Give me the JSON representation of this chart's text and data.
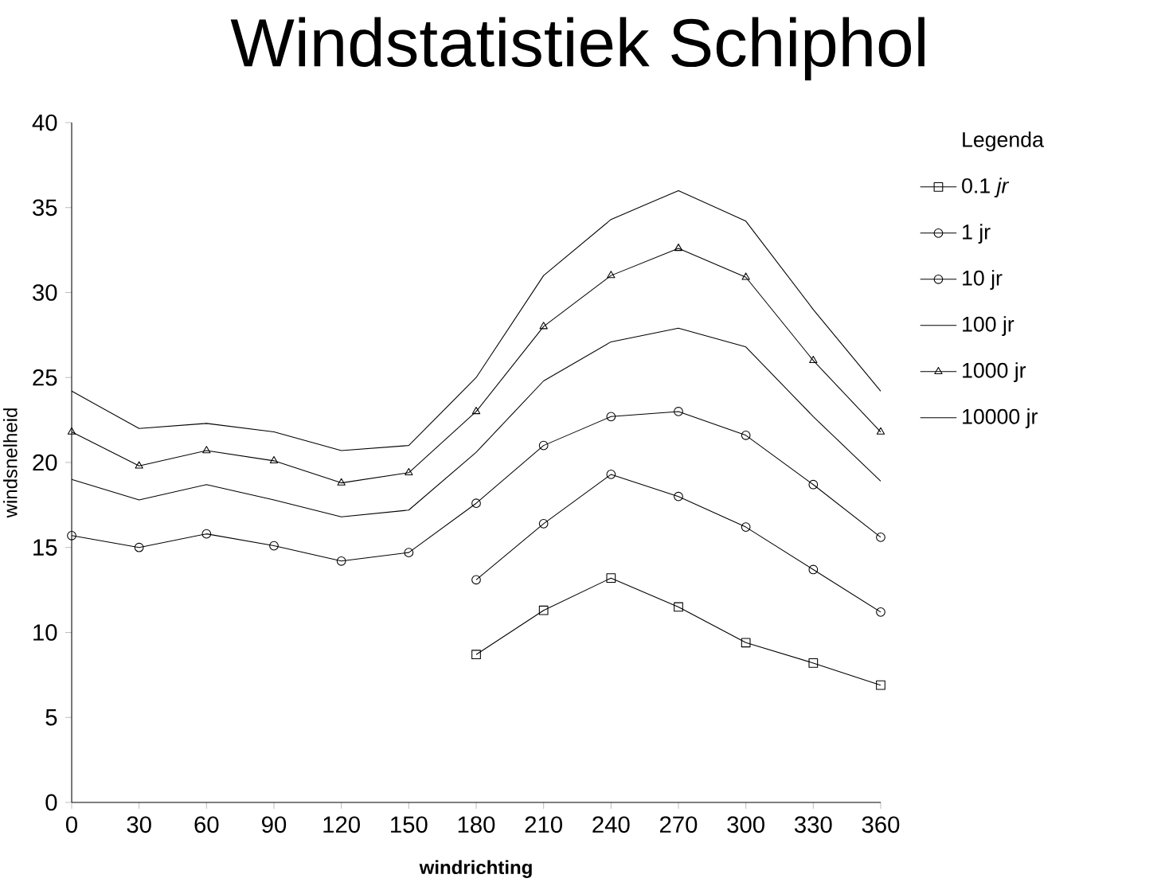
{
  "chart_data": {
    "type": "line",
    "title": "Windstatistiek Schiphol",
    "xlabel": "windrichting",
    "ylabel": "windsnelheid",
    "legend_title": "Legenda",
    "legend": "right",
    "x": [
      0,
      30,
      60,
      90,
      120,
      150,
      180,
      210,
      240,
      270,
      300,
      330,
      360
    ],
    "xlim": [
      0,
      360
    ],
    "xticks": [
      0,
      30,
      60,
      90,
      120,
      150,
      180,
      210,
      240,
      270,
      300,
      330,
      360
    ],
    "ylim": [
      0,
      40
    ],
    "yticks": [
      0,
      5,
      10,
      15,
      20,
      25,
      30,
      35,
      40
    ],
    "grid": false,
    "line_style": "solid",
    "series": [
      {
        "name": "0.1 *jr*",
        "color": "#000000",
        "marker": "square",
        "values": [
          null,
          null,
          null,
          null,
          null,
          null,
          8.7,
          11.3,
          13.2,
          11.5,
          9.4,
          8.2,
          6.9
        ]
      },
      {
        "name": "1 jr",
        "color": "#000000",
        "marker": "circle",
        "values": [
          null,
          null,
          null,
          null,
          null,
          null,
          13.1,
          16.4,
          19.3,
          18.0,
          16.2,
          13.7,
          11.2
        ]
      },
      {
        "name": "10 jr",
        "color": "#000000",
        "marker": "circle",
        "values": [
          15.7,
          15.0,
          15.8,
          15.1,
          14.2,
          14.7,
          17.6,
          21.0,
          22.7,
          23.0,
          21.6,
          18.7,
          15.6
        ]
      },
      {
        "name": "100 jr",
        "color": "#000000",
        "marker": "none",
        "values": [
          19.0,
          17.8,
          18.7,
          17.8,
          16.8,
          17.2,
          20.6,
          24.8,
          27.1,
          27.9,
          26.8,
          22.7,
          18.9
        ]
      },
      {
        "name": "1000 jr",
        "color": "#000000",
        "marker": "triangle",
        "values": [
          21.8,
          19.8,
          20.7,
          20.1,
          18.8,
          19.4,
          23.0,
          28.0,
          31.0,
          32.6,
          30.9,
          26.0,
          21.8
        ]
      },
      {
        "name": "10000 jr",
        "color": "#000000",
        "marker": "none",
        "values": [
          24.2,
          22.0,
          22.3,
          21.8,
          20.7,
          21.0,
          25.0,
          31.0,
          34.3,
          36.0,
          34.2,
          29.0,
          24.2
        ]
      }
    ]
  }
}
